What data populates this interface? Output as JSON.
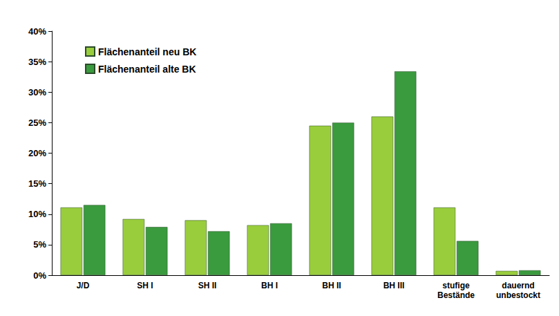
{
  "chart_data": {
    "type": "bar",
    "categories": [
      "J/D",
      "SH I",
      "SH II",
      "BH I",
      "BH II",
      "BH III",
      "stufige\nBestände",
      "dauernd\nunbestockt"
    ],
    "series": [
      {
        "name": "Flächenanteil neu BK",
        "color": "#9acd3c",
        "values": [
          11.1,
          9.2,
          9.0,
          8.2,
          24.5,
          26.0,
          11.1,
          0.7
        ]
      },
      {
        "name": "Flächenanteil alte BK",
        "color": "#3a9a3e",
        "values": [
          11.5,
          7.9,
          7.2,
          8.5,
          25.0,
          33.4,
          5.6,
          0.8
        ]
      }
    ],
    "ylim": [
      0,
      40
    ],
    "yticks": [
      {
        "value": 0,
        "label": "0%"
      },
      {
        "value": 5,
        "label": "5%"
      },
      {
        "value": 10,
        "label": "10%"
      },
      {
        "value": 15,
        "label": "15%"
      },
      {
        "value": 20,
        "label": "20%"
      },
      {
        "value": 25,
        "label": "25%"
      },
      {
        "value": 30,
        "label": "30%"
      },
      {
        "value": 35,
        "label": "35%"
      },
      {
        "value": 40,
        "label": "40%"
      }
    ],
    "grid": false,
    "legend": "top-left"
  }
}
